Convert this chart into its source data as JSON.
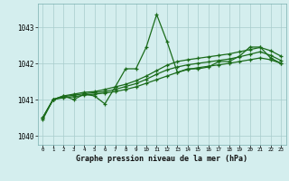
{
  "title": "Graphe pression niveau de la mer (hPa)",
  "bg_color": "#d4eeee",
  "line_color": "#1a6b1a",
  "grid_color": "#a8cccc",
  "x_values": [
    0,
    1,
    2,
    3,
    4,
    5,
    6,
    7,
    8,
    9,
    10,
    11,
    12,
    13,
    14,
    15,
    16,
    17,
    18,
    19,
    20,
    21,
    22,
    23
  ],
  "ylim_min": 1039.75,
  "ylim_max": 1043.65,
  "yticks": [
    1040,
    1041,
    1042,
    1043
  ],
  "line1_y": [
    1040.5,
    1041.0,
    1041.05,
    1041.08,
    1041.12,
    1041.15,
    1041.18,
    1041.22,
    1041.28,
    1041.35,
    1041.45,
    1041.55,
    1041.65,
    1041.75,
    1041.83,
    1041.88,
    1041.92,
    1041.96,
    1042.0,
    1042.05,
    1042.1,
    1042.15,
    1042.1,
    1042.0
  ],
  "line2_y": [
    1040.5,
    1041.0,
    1041.08,
    1041.12,
    1041.16,
    1041.19,
    1041.22,
    1041.28,
    1041.36,
    1041.44,
    1041.56,
    1041.7,
    1041.82,
    1041.9,
    1041.96,
    1042.0,
    1042.04,
    1042.08,
    1042.12,
    1042.18,
    1042.25,
    1042.32,
    1042.22,
    1042.08
  ],
  "line3_y": [
    1040.5,
    1041.0,
    1041.1,
    1041.15,
    1041.2,
    1041.22,
    1041.28,
    1041.35,
    1041.42,
    1041.52,
    1041.65,
    1041.8,
    1041.95,
    1042.05,
    1042.1,
    1042.14,
    1042.18,
    1042.22,
    1042.26,
    1042.32,
    1042.38,
    1042.44,
    1042.35,
    1042.2
  ],
  "main_y": [
    1040.45,
    1041.0,
    1041.1,
    1041.0,
    1041.15,
    1041.1,
    1040.88,
    1041.35,
    1041.85,
    1041.85,
    1042.45,
    1043.35,
    1042.6,
    1041.75,
    1041.85,
    1041.85,
    1041.9,
    1042.05,
    1042.05,
    1042.2,
    1042.45,
    1042.45,
    1042.15,
    1042.0
  ]
}
